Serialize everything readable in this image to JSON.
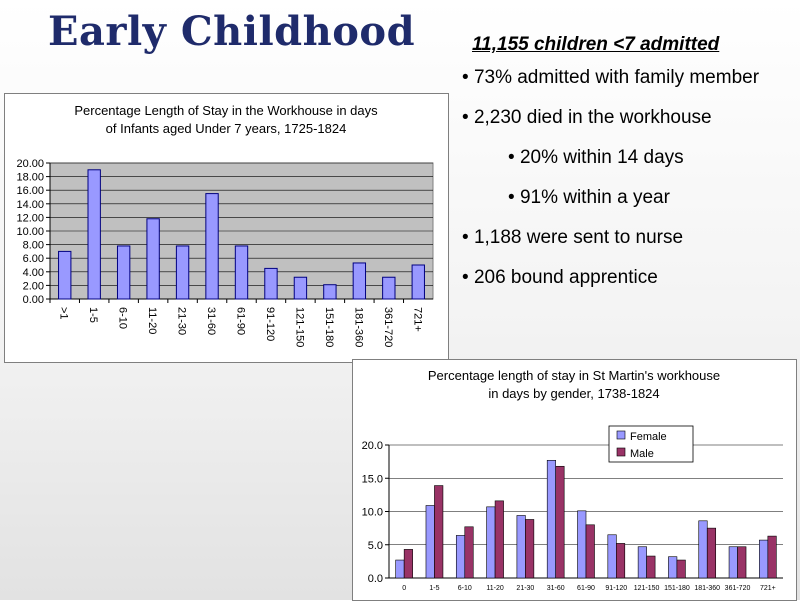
{
  "slide": {
    "title": "Early Childhood",
    "bullets_heading": "11,155 children <7 admitted",
    "bullets": [
      {
        "text": "73% admitted with family member",
        "level": 1
      },
      {
        "text": "2,230 died in the workhouse",
        "level": 1
      },
      {
        "text": "20% within 14 days",
        "level": 2
      },
      {
        "text": "91% within a year",
        "level": 2
      },
      {
        "text": "1,188 were sent to nurse",
        "level": 1
      },
      {
        "text": "206 bound apprentice",
        "level": 1
      }
    ]
  },
  "chart_data": [
    {
      "type": "bar",
      "title": "Percentage Length of Stay in the Workhouse in days of Infants aged Under 7 years, 1725-1824",
      "title_lines": [
        "Percentage Length of Stay in the Workhouse in days",
        "of Infants aged Under 7 years, 1725-1824"
      ],
      "categories": [
        ">1",
        "1-5",
        "6-10",
        "11-20",
        "21-30",
        "31-60",
        "61-90",
        "91-120",
        "121-150",
        "151-180",
        "181-360",
        "361-720",
        "721+"
      ],
      "values": [
        7.0,
        19.0,
        7.8,
        11.8,
        7.8,
        15.5,
        7.8,
        4.5,
        3.2,
        2.1,
        5.3,
        3.2,
        5.0
      ],
      "ylim": [
        0,
        20
      ],
      "yticks": [
        "0.00",
        "2.00",
        "4.00",
        "6.00",
        "8.00",
        "10.00",
        "12.00",
        "14.00",
        "16.00",
        "18.00",
        "20.00"
      ],
      "grid": true,
      "plot_background": "#c0c0c0",
      "bar_color": "#9999ff",
      "bar_edge": "#000080",
      "xlabel": "",
      "ylabel": ""
    },
    {
      "type": "bar",
      "title": "Percentage length of stay in St Martin's workhouse in days by gender, 1738-1824",
      "title_lines": [
        "Percentage length of stay in St Martin's workhouse",
        "in days by gender, 1738-1824"
      ],
      "categories": [
        "0",
        "1-5",
        "6-10",
        "11-20",
        "21-30",
        "31-60",
        "61-90",
        "91-120",
        "121-150",
        "151-180",
        "181-360",
        "361-720",
        "721+"
      ],
      "series": [
        {
          "name": "Female",
          "color": "#9999ff",
          "values": [
            2.7,
            10.9,
            6.4,
            10.7,
            9.4,
            17.7,
            10.1,
            6.5,
            4.7,
            3.2,
            8.6,
            4.7,
            5.7
          ]
        },
        {
          "name": "Male",
          "color": "#993366",
          "values": [
            4.3,
            13.9,
            7.7,
            11.6,
            8.8,
            16.8,
            8.0,
            5.2,
            3.3,
            2.7,
            7.5,
            4.7,
            6.3
          ]
        }
      ],
      "ylim": [
        0,
        20
      ],
      "yticks": [
        "0.0",
        "5.0",
        "10.0",
        "15.0",
        "20.0"
      ],
      "grid": true,
      "legend": "top-right",
      "plot_background": "#ffffff",
      "xlabel": "",
      "ylabel": ""
    }
  ]
}
